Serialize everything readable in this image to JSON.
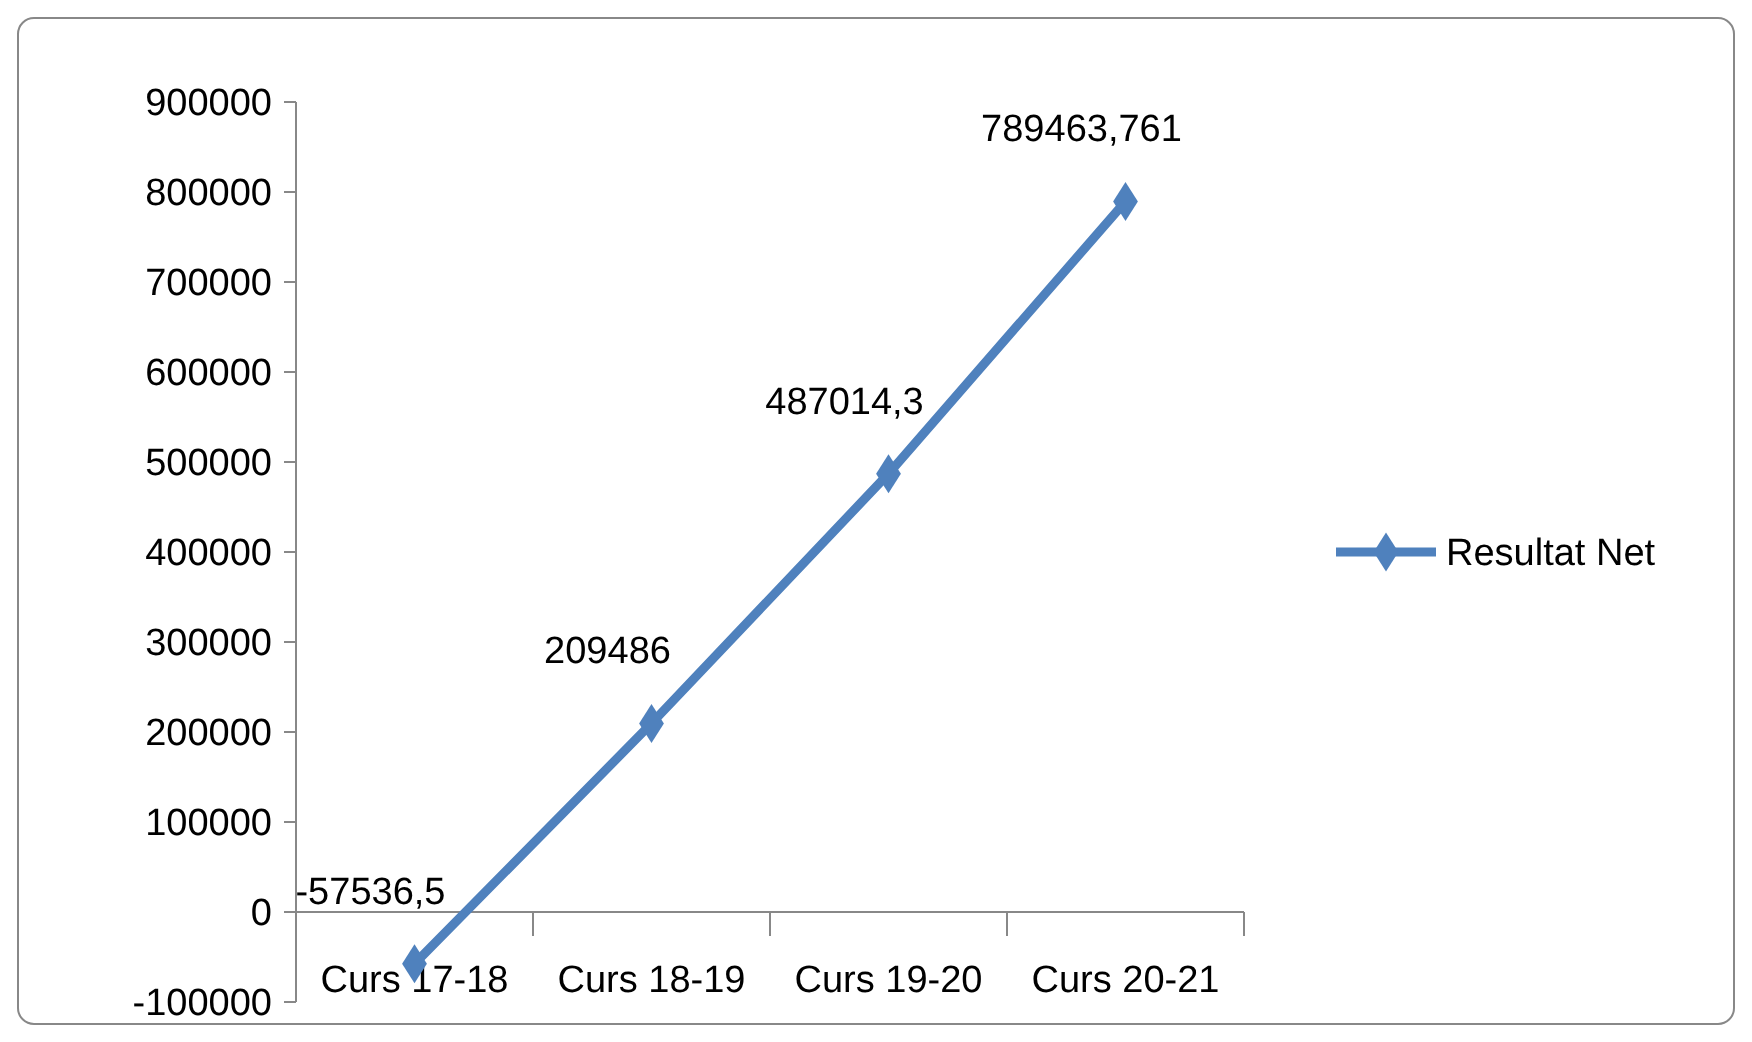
{
  "chart_data": {
    "type": "line",
    "categories": [
      "Curs 17-18",
      "Curs 18-19",
      "Curs 19-20",
      "Curs 20-21"
    ],
    "series": [
      {
        "name": "Resultat Net",
        "color": "#4f81bd",
        "values": [
          -57536.5,
          209486,
          487014.3,
          789463.761
        ],
        "value_labels": [
          "-57536,5",
          "209486",
          "487014,3",
          "789463,761"
        ]
      }
    ],
    "ylim": [
      -100000,
      900000
    ],
    "yticks": [
      -100000,
      0,
      100000,
      200000,
      300000,
      400000,
      500000,
      600000,
      700000,
      800000,
      900000
    ],
    "legend": "right",
    "marker": "diamond",
    "line_style": "solid"
  }
}
